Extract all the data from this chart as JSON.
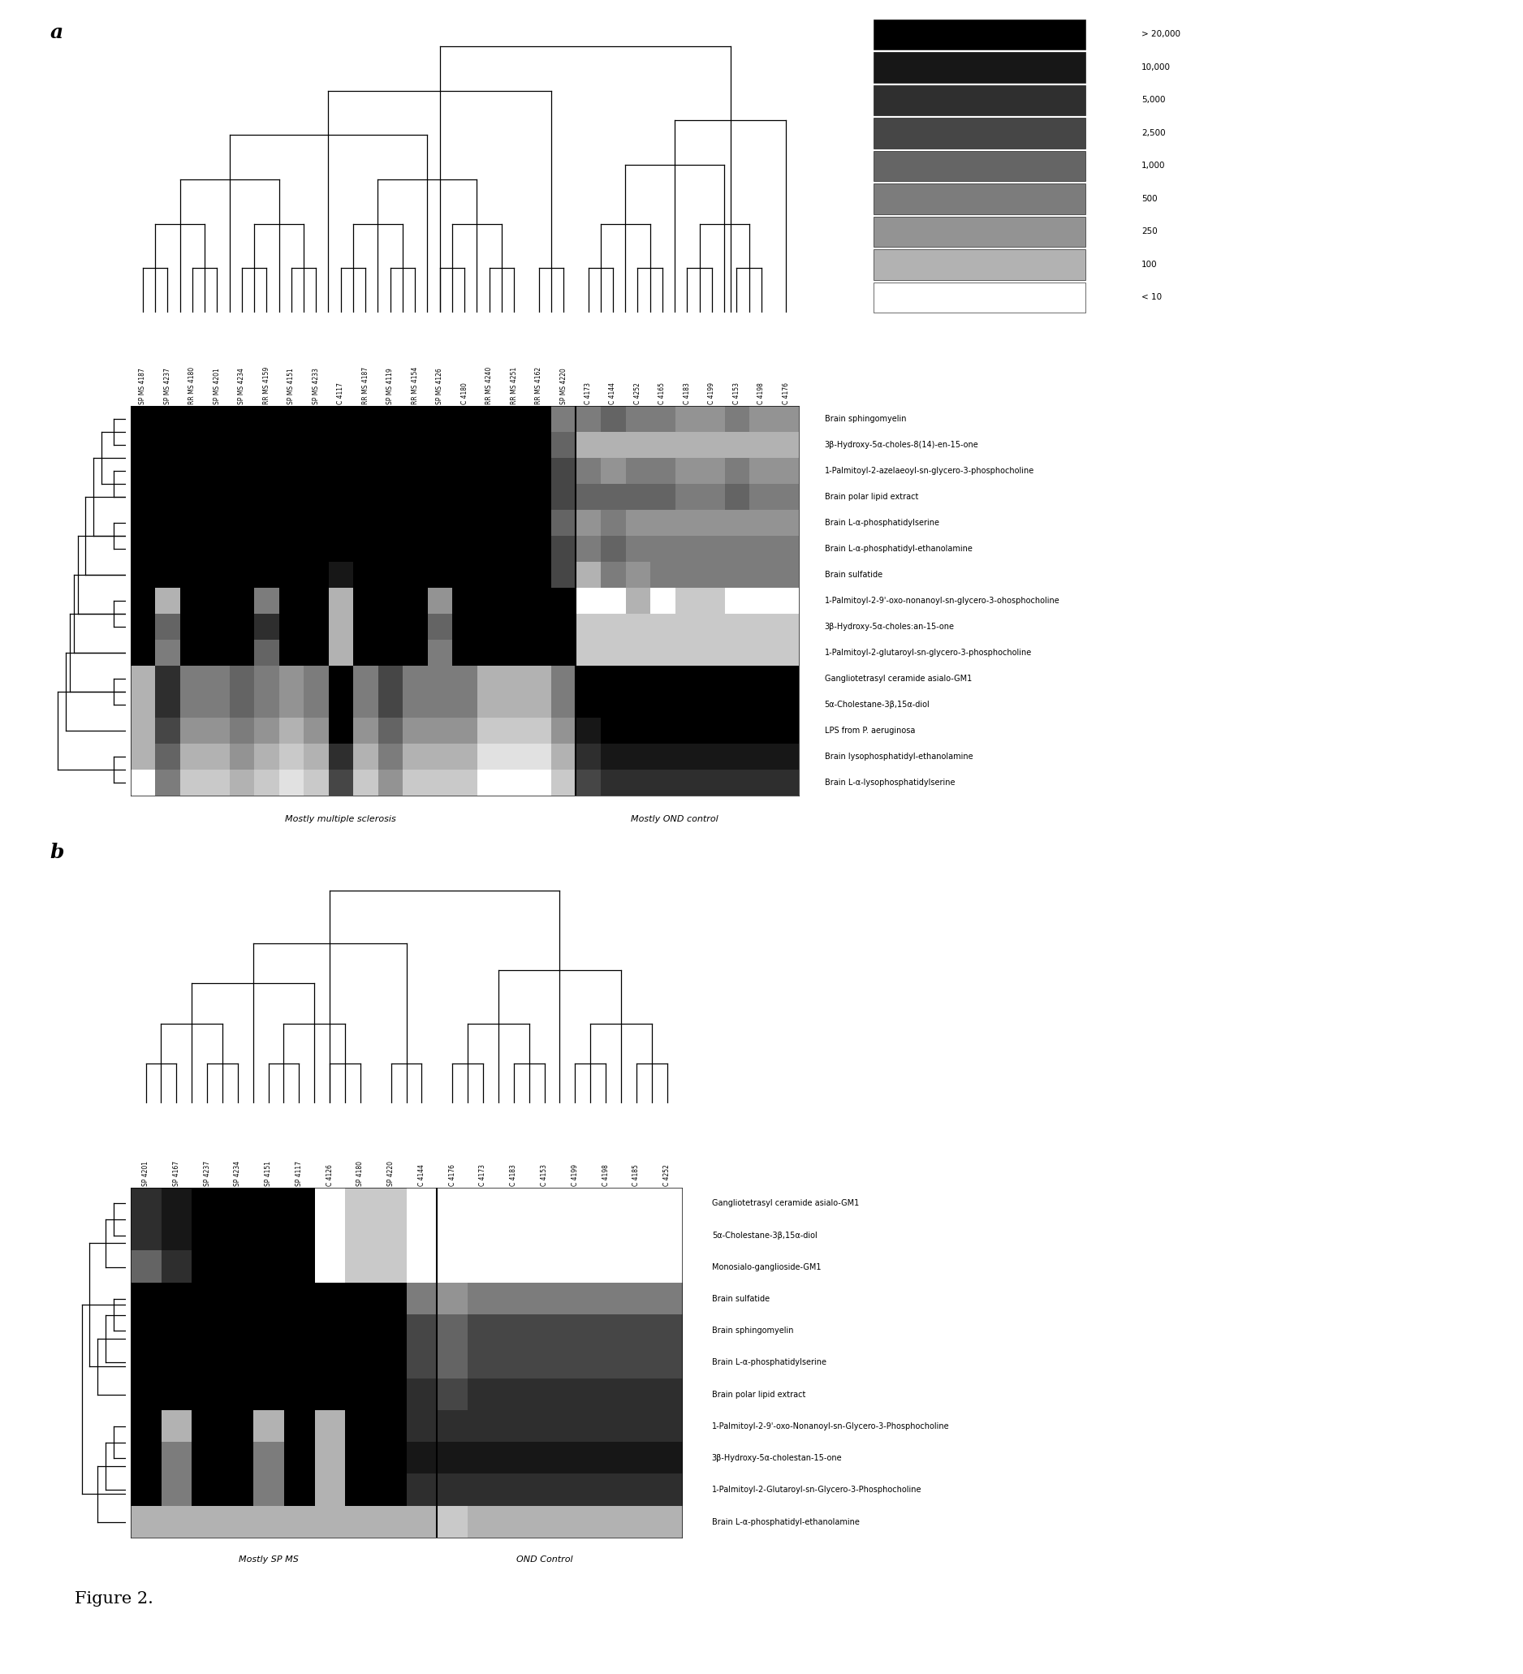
{
  "panel_a": {
    "col_labels": [
      "SP MS 4187",
      "SP MS 4237",
      "RR MS 4180",
      "SP MS 4201",
      "SP MS 4234",
      "RR MS 4159",
      "SP MS 4151",
      "SP MS 4233",
      "C 4117",
      "RR MS 4187",
      "SP MS 4119",
      "RR MS 4154",
      "SP MS 4126",
      "C 4180",
      "RR MS 4240",
      "RR MS 4251",
      "RR MS 4162",
      "SP MS 4220",
      "C 4173",
      "C 4144",
      "C 4252",
      "C 4165",
      "C 4183",
      "C 4199",
      "C 4153",
      "C 4198",
      "C 4176"
    ],
    "row_labels": [
      "Brain sphingomyelin",
      "3β-Hydroxy-5α-choles-8(14)-en-15-one",
      "1-Palmitoyl-2-azelaeoyl-sn-glycero-3-phosphocholine",
      "Brain polar lipid extract",
      "Brain L-α-phosphatidylserine",
      "Brain L-α-phosphatidyl-ethanolamine",
      "Brain sulfatide",
      "1-Palmitoyl-2-9'-oxo-nonanoyl-sn-glycero-3-ohosphocholine",
      "3β-Hydroxy-5α-choles:an-15-one",
      "1-Palmitoyl-2-glutaroyl-sn-glycero-3-phosphocholine",
      "Gangliotetrasyl ceramide asialo-GM1",
      "5α-Cholestane-3β,15α-diol",
      "LPS from P. aeruginosa",
      "Brain lysophosphatidyl-ethanolamine",
      "Brain L-α-lysophosphatidylserine"
    ],
    "n_ms_cols": 18,
    "n_control_cols": 9,
    "ms_label": "Mostly multiple sclerosis",
    "control_label": "Mostly OND control",
    "data": [
      [
        20000,
        20000,
        20000,
        20000,
        20000,
        20000,
        20000,
        20000,
        20000,
        20000,
        20000,
        20000,
        20000,
        20000,
        20000,
        20000,
        20000,
        500,
        500,
        1000,
        500,
        500,
        250,
        250,
        500,
        250,
        250
      ],
      [
        20000,
        20000,
        20000,
        20000,
        20000,
        20000,
        20000,
        20000,
        20000,
        20000,
        20000,
        20000,
        20000,
        20000,
        20000,
        20000,
        20000,
        1000,
        100,
        100,
        100,
        100,
        100,
        100,
        100,
        100,
        100
      ],
      [
        20000,
        20000,
        20000,
        20000,
        20000,
        20000,
        20000,
        20000,
        20000,
        20000,
        20000,
        20000,
        20000,
        20000,
        20000,
        20000,
        20000,
        2500,
        500,
        250,
        500,
        500,
        250,
        250,
        500,
        250,
        250
      ],
      [
        20000,
        20000,
        20000,
        20000,
        20000,
        20000,
        20000,
        20000,
        20000,
        20000,
        20000,
        20000,
        20000,
        20000,
        20000,
        20000,
        20000,
        2500,
        1000,
        1000,
        1000,
        1000,
        500,
        500,
        1000,
        500,
        500
      ],
      [
        20000,
        20000,
        20000,
        20000,
        20000,
        20000,
        20000,
        20000,
        20000,
        20000,
        20000,
        20000,
        20000,
        20000,
        20000,
        20000,
        20000,
        1000,
        250,
        500,
        250,
        250,
        250,
        250,
        250,
        250,
        250
      ],
      [
        20000,
        20000,
        20000,
        20000,
        20000,
        20000,
        20000,
        20000,
        20000,
        20000,
        20000,
        20000,
        20000,
        20000,
        20000,
        20000,
        20000,
        2500,
        500,
        1000,
        500,
        500,
        500,
        500,
        500,
        500,
        500
      ],
      [
        20000,
        20000,
        20000,
        20000,
        20000,
        20000,
        20000,
        20000,
        10000,
        20000,
        20000,
        20000,
        20000,
        20000,
        20000,
        20000,
        20000,
        2500,
        100,
        500,
        250,
        500,
        500,
        500,
        500,
        500,
        500
      ],
      [
        20000,
        100,
        20000,
        20000,
        20000,
        500,
        20000,
        20000,
        100,
        20000,
        20000,
        20000,
        250,
        20000,
        20000,
        20000,
        20000,
        20000,
        10,
        10,
        100,
        10,
        50,
        50,
        10,
        10,
        10
      ],
      [
        20000,
        1000,
        20000,
        20000,
        20000,
        5000,
        20000,
        20000,
        100,
        20000,
        20000,
        20000,
        1000,
        20000,
        20000,
        20000,
        20000,
        20000,
        50,
        50,
        50,
        50,
        50,
        50,
        50,
        50,
        50
      ],
      [
        20000,
        500,
        20000,
        20000,
        20000,
        1000,
        20000,
        20000,
        100,
        20000,
        20000,
        20000,
        500,
        20000,
        20000,
        20000,
        20000,
        20000,
        50,
        50,
        50,
        50,
        50,
        50,
        50,
        50,
        50
      ],
      [
        100,
        5000,
        500,
        500,
        1000,
        500,
        250,
        500,
        20000,
        500,
        2500,
        500,
        500,
        500,
        100,
        100,
        100,
        500,
        20000,
        20000,
        20000,
        20000,
        20000,
        20000,
        20000,
        20000,
        20000
      ],
      [
        100,
        5000,
        500,
        500,
        1000,
        500,
        250,
        500,
        20000,
        500,
        2500,
        500,
        500,
        500,
        100,
        100,
        100,
        500,
        20000,
        20000,
        20000,
        20000,
        20000,
        20000,
        20000,
        20000,
        20000
      ],
      [
        100,
        2500,
        250,
        250,
        500,
        250,
        100,
        250,
        20000,
        250,
        1000,
        250,
        250,
        250,
        50,
        50,
        50,
        250,
        10000,
        20000,
        20000,
        20000,
        20000,
        20000,
        20000,
        20000,
        20000
      ],
      [
        100,
        1000,
        100,
        100,
        250,
        100,
        50,
        100,
        5000,
        100,
        500,
        100,
        100,
        100,
        25,
        25,
        25,
        100,
        5000,
        10000,
        10000,
        10000,
        10000,
        10000,
        10000,
        10000,
        10000
      ],
      [
        10,
        500,
        50,
        50,
        100,
        50,
        25,
        50,
        2500,
        50,
        250,
        50,
        50,
        50,
        10,
        10,
        10,
        50,
        2500,
        5000,
        5000,
        5000,
        5000,
        5000,
        5000,
        5000,
        5000
      ]
    ]
  },
  "panel_b": {
    "col_labels": [
      "SP 4201",
      "SP 4167",
      "SP 4237",
      "SP 4234",
      "SP 4151",
      "SP 4117",
      "C 4126",
      "SP 4180",
      "SP 4220",
      "C 4144",
      "C 4176",
      "C 4173",
      "C 4183",
      "C 4153",
      "C 4199",
      "C 4198",
      "C 4185",
      "C 4252"
    ],
    "row_labels": [
      "Gangliotetrasyl ceramide asialo-GM1",
      "5α-Cholestane-3β,15α-diol",
      "Monosialo-ganglioside-GM1",
      "Brain sulfatide",
      "Brain sphingomyelin",
      "Brain L-α-phosphatidylserine",
      "Brain polar lipid extract",
      "1-Palmitoyl-2-9'-oxo-Nonanoyl-sn-Glycero-3-Phosphocholine",
      "3β-Hydroxy-5α-cholestan-15-one",
      "1-Palmitoyl-2-Glutaroyl-sn-Glycero-3-Phosphocholine",
      "Brain L-α-phosphatidyl-ethanolamine"
    ],
    "n_ms_cols": 10,
    "n_control_cols": 8,
    "ms_label": "Mostly SP MS",
    "control_label": "OND Control",
    "data": [
      [
        5000,
        10000,
        20000,
        20000,
        20000,
        20000,
        10,
        50,
        50,
        10,
        10,
        10,
        10,
        10,
        10,
        10,
        10,
        10
      ],
      [
        5000,
        10000,
        20000,
        20000,
        20000,
        20000,
        10,
        50,
        50,
        10,
        10,
        10,
        10,
        10,
        10,
        10,
        10,
        10
      ],
      [
        1000,
        5000,
        20000,
        20000,
        20000,
        20000,
        10,
        50,
        50,
        10,
        10,
        10,
        10,
        10,
        10,
        10,
        10,
        10
      ],
      [
        20000,
        20000,
        20000,
        20000,
        20000,
        20000,
        20000,
        20000,
        20000,
        500,
        250,
        500,
        500,
        500,
        500,
        500,
        500,
        500
      ],
      [
        20000,
        20000,
        20000,
        20000,
        20000,
        20000,
        20000,
        20000,
        20000,
        2500,
        1000,
        2500,
        2500,
        2500,
        2500,
        2500,
        2500,
        2500
      ],
      [
        20000,
        20000,
        20000,
        20000,
        20000,
        20000,
        20000,
        20000,
        20000,
        2500,
        1000,
        2500,
        2500,
        2500,
        2500,
        2500,
        2500,
        2500
      ],
      [
        20000,
        20000,
        20000,
        20000,
        20000,
        20000,
        20000,
        20000,
        20000,
        5000,
        2500,
        5000,
        5000,
        5000,
        5000,
        5000,
        5000,
        5000
      ],
      [
        20000,
        100,
        20000,
        20000,
        100,
        20000,
        100,
        20000,
        20000,
        5000,
        5000,
        5000,
        5000,
        5000,
        5000,
        5000,
        5000,
        5000
      ],
      [
        20000,
        500,
        20000,
        20000,
        500,
        20000,
        100,
        20000,
        20000,
        10000,
        10000,
        10000,
        10000,
        10000,
        10000,
        10000,
        10000,
        10000
      ],
      [
        20000,
        500,
        20000,
        20000,
        500,
        20000,
        100,
        20000,
        20000,
        5000,
        5000,
        5000,
        5000,
        5000,
        5000,
        5000,
        5000,
        5000
      ],
      [
        100,
        100,
        100,
        100,
        100,
        100,
        100,
        100,
        100,
        100,
        50,
        100,
        100,
        100,
        100,
        100,
        100,
        100
      ]
    ]
  },
  "colorbar_values": [
    20000,
    10000,
    5000,
    2500,
    1000,
    500,
    250,
    100,
    10
  ],
  "colorbar_ticks": [
    "> 20,000",
    "10,000",
    "5,000",
    "2,500",
    "1,000",
    "500",
    "250",
    "100",
    "< 10"
  ],
  "figure_label": "Figure 2."
}
